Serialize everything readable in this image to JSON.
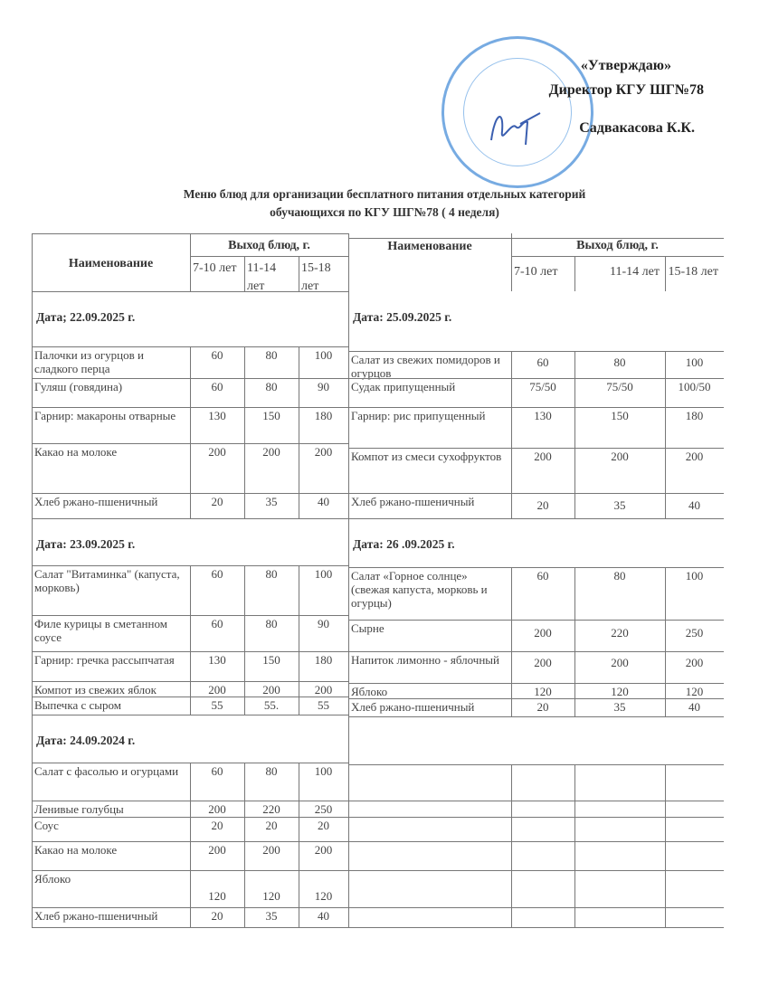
{
  "approval": {
    "line1": "«Утверждаю»",
    "line2": "Директор  КГУ ШГ№78",
    "line3": "Садвакасова К.К."
  },
  "stamp": {
    "text": "АЛМАТЫ ҚАЛАСЫ БІЛІМ БАСҚАРМАСЫНЫҢ №78 МЕКТЕП-ГИМНАЗИЯ КОММУНАЛДЫҚ МЕМЛЕКЕТТІК МЕКЕМЕСІ",
    "color": "#4a8fd8"
  },
  "title": {
    "line1": "Меню блюд для организации бесплатного питания отдельных категорий",
    "line2": "обучающихся по КГУ ШГ№78 ( 4 неделя)"
  },
  "table_header": {
    "name": "Наименование",
    "yield": "Выход блюд, г.",
    "ages": [
      "7-10 лет",
      "11-14 лет",
      "15-18 лет"
    ]
  },
  "left_days": [
    {
      "date": "Дата; 22.09.2025 г.",
      "items": [
        [
          "Палочки из огурцов и сладкого перца",
          "60",
          "80",
          "100"
        ],
        [
          "Гуляш (говядина)",
          "60",
          "80",
          "90"
        ],
        [
          "Гарнир: макароны отварные",
          "130",
          "150",
          "180"
        ],
        [
          "Какао на молоке",
          "200",
          "200",
          "200"
        ],
        [
          "Хлеб ржано-пшеничный",
          "20",
          "35",
          "40"
        ]
      ]
    },
    {
      "date": "Дата: 23.09.2025 г.",
      "items": [
        [
          "Салат \"Витаминка\" (капуста, морковь)",
          "60",
          "80",
          "100"
        ],
        [
          "Филе курицы в сметанном соусе",
          "60",
          "80",
          "90"
        ],
        [
          "Гарнир: гречка рассыпчатая",
          "130",
          "150",
          "180"
        ],
        [
          "Компот из свежих яблок",
          "200",
          "200",
          "200"
        ],
        [
          "Выпечка с сыром",
          "55",
          "55.",
          "55"
        ]
      ]
    },
    {
      "date": "Дата: 24.09.2024 г.",
      "items": [
        [
          "Салат с фасолью и огурцами",
          "60",
          "80",
          "100"
        ],
        [
          "Ленивые голубцы",
          "200",
          "220",
          "250"
        ],
        [
          "Соус",
          "20",
          "20",
          "20"
        ],
        [
          "Какао на молоке",
          "200",
          "200",
          "200"
        ],
        [
          "Яблоко",
          "120",
          "120",
          "120"
        ],
        [
          "Хлеб ржано-пшеничный",
          "20",
          "35",
          "40"
        ]
      ]
    }
  ],
  "right_days": [
    {
      "date": "Дата: 25.09.2025 г.",
      "items": [
        [
          "Салат из свежих помидоров и огурцов",
          "60",
          "80",
          "100"
        ],
        [
          "Судак припущенный",
          "75/50",
          "75/50",
          "100/50"
        ],
        [
          "Гарнир: рис припущенный",
          "130",
          "150",
          "180"
        ],
        [
          "Компот из смеси сухофруктов",
          "200",
          "200",
          "200"
        ],
        [
          "Хлеб ржано-пшеничный",
          "20",
          "35",
          "40"
        ]
      ]
    },
    {
      "date": "Дата: 26 .09.2025 г.",
      "items": [
        [
          "Салат «Горное солнце» (свежая капуста, морковь и огурцы)",
          "60",
          "80",
          "100"
        ],
        [
          "Сырне",
          "200",
          "220",
          "250"
        ],
        [
          "Напиток лимонно - яблочный",
          "200",
          "200",
          "200"
        ],
        [
          "Яблоко",
          "120",
          "120",
          "120"
        ],
        [
          "Хлеб ржано-пшеничный",
          "20",
          "35",
          "40"
        ]
      ]
    }
  ]
}
